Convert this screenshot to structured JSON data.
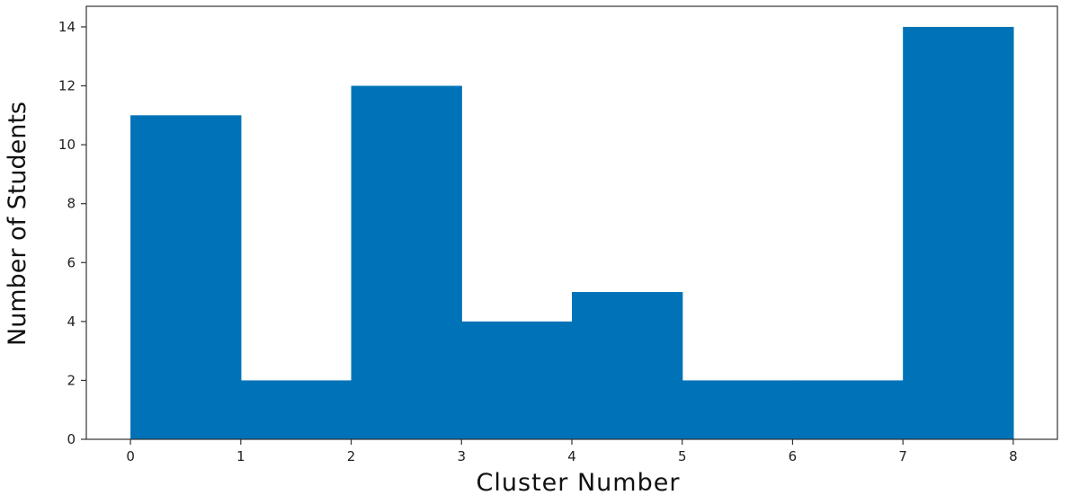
{
  "chart_data": {
    "type": "bar",
    "title": "",
    "xlabel": "Cluster Number",
    "ylabel": "Number of Students",
    "bins": [
      {
        "x0": 0,
        "x1": 1,
        "value": 11
      },
      {
        "x0": 1,
        "x1": 2,
        "value": 2
      },
      {
        "x0": 2,
        "x1": 3,
        "value": 12
      },
      {
        "x0": 3,
        "x1": 4,
        "value": 4
      },
      {
        "x0": 4,
        "x1": 5,
        "value": 5
      },
      {
        "x0": 5,
        "x1": 6,
        "value": 2
      },
      {
        "x0": 6,
        "x1": 7,
        "value": 2
      },
      {
        "x0": 7,
        "x1": 8,
        "value": 14
      }
    ],
    "xticks": [
      0,
      1,
      2,
      3,
      4,
      5,
      6,
      7,
      8
    ],
    "yticks": [
      0,
      2,
      4,
      6,
      8,
      10,
      12,
      14
    ],
    "xlim": [
      -0.4,
      8.4
    ],
    "ylim": [
      0,
      14.7
    ],
    "grid": false,
    "bar_color": "#0072b8",
    "axis_color": "#333333"
  }
}
